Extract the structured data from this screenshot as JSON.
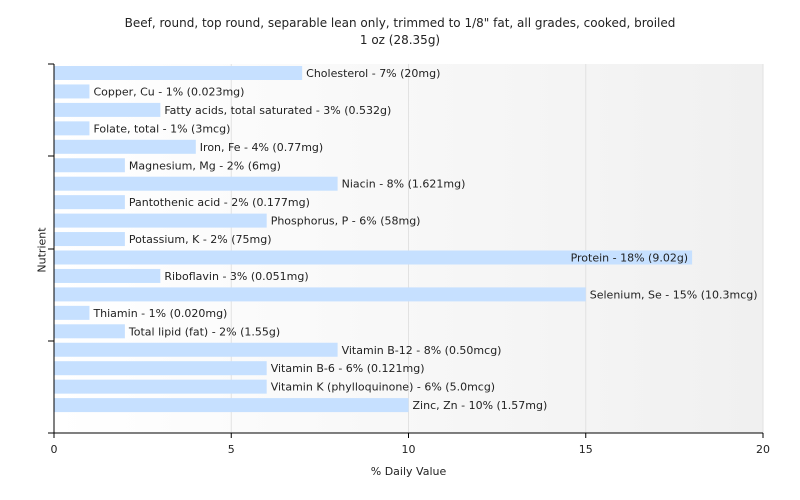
{
  "chart_data": {
    "type": "bar",
    "orientation": "horizontal",
    "title": "Beef, round, top round, separable lean only, trimmed to 1/8\" fat, all grades, cooked, broiled",
    "subtitle": "1 oz (28.35g)",
    "xlabel": "% Daily Value",
    "ylabel": "Nutrient",
    "xlim": [
      0,
      20
    ],
    "xticks": [
      0,
      5,
      10,
      15,
      20
    ],
    "grid": true,
    "bar_color": "#c6e0ff",
    "categories": [
      "Cholesterol",
      "Copper, Cu",
      "Fatty acids, total saturated",
      "Folate, total",
      "Iron, Fe",
      "Magnesium, Mg",
      "Niacin",
      "Pantothenic acid",
      "Phosphorus, P",
      "Potassium, K",
      "Protein",
      "Riboflavin",
      "Selenium, Se",
      "Thiamin",
      "Total lipid (fat)",
      "Vitamin B-12",
      "Vitamin B-6",
      "Vitamin K (phylloquinone)",
      "Zinc, Zn"
    ],
    "values": [
      7,
      1,
      3,
      1,
      4,
      2,
      8,
      2,
      6,
      2,
      18,
      3,
      15,
      1,
      2,
      8,
      6,
      6,
      10
    ],
    "labels": [
      "Cholesterol - 7% (20mg)",
      "Copper, Cu - 1% (0.023mg)",
      "Fatty acids, total saturated - 3% (0.532g)",
      "Folate, total - 1% (3mcg)",
      "Iron, Fe - 4% (0.77mg)",
      "Magnesium, Mg - 2% (6mg)",
      "Niacin - 8% (1.621mg)",
      "Pantothenic acid - 2% (0.177mg)",
      "Phosphorus, P - 6% (58mg)",
      "Potassium, K - 2% (75mg)",
      "Protein - 18% (9.02g)",
      "Riboflavin - 3% (0.051mg)",
      "Selenium, Se - 15% (10.3mcg)",
      "Thiamin - 1% (0.020mg)",
      "Total lipid (fat) - 2% (1.55g)",
      "Vitamin B-12 - 8% (0.50mcg)",
      "Vitamin B-6 - 6% (0.121mg)",
      "Vitamin K (phylloquinone) - 6% (5.0mcg)",
      "Zinc, Zn - 10% (1.57mg)"
    ]
  }
}
